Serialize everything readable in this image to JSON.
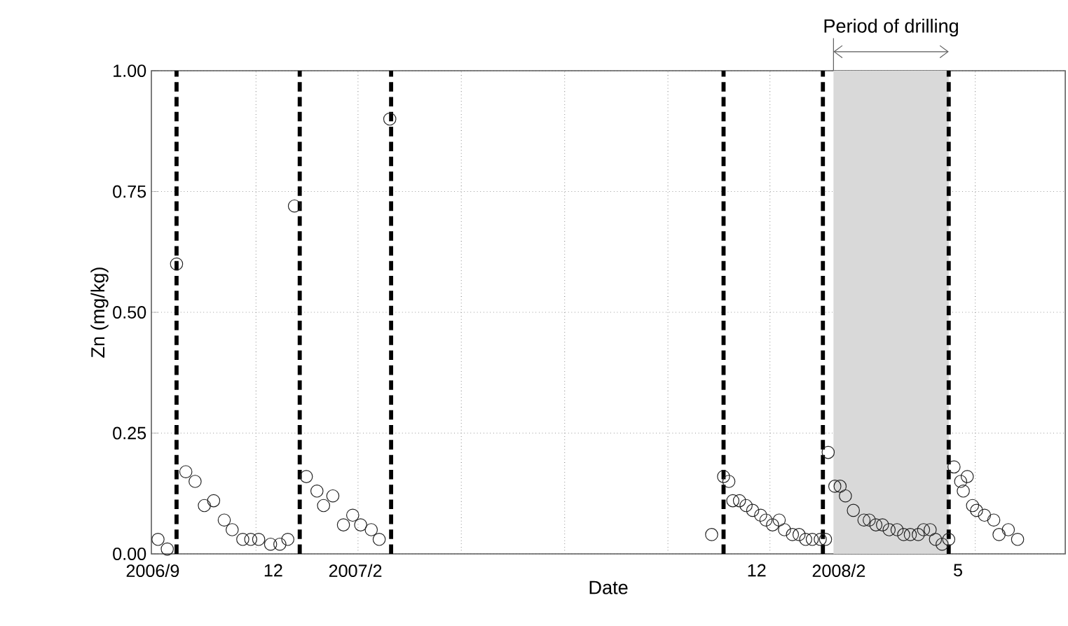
{
  "chart_data": {
    "type": "scatter",
    "xlabel": "Date",
    "ylabel": "Zn (mg/kg)",
    "xlim": [
      "2006-08-31",
      "2008-07-21"
    ],
    "ylim": [
      0,
      1
    ],
    "xticks": [
      {
        "value": "2006-09",
        "label": "2006/9"
      },
      {
        "value": "2006-11-18",
        "label": null
      },
      {
        "value": "2006-12",
        "label": "12"
      },
      {
        "value": "2007-02-03",
        "label": null
      },
      {
        "value": "2007-02",
        "label": "2007/2"
      },
      {
        "value": "2007-04-22",
        "label": null
      },
      {
        "value": "2007-07-09",
        "label": null
      },
      {
        "value": "2007-09-25",
        "label": null
      },
      {
        "value": "2007-12",
        "label": "12"
      },
      {
        "value": "2007-12-11",
        "label": null
      },
      {
        "value": "2008-02",
        "label": "2008/2"
      },
      {
        "value": "2008-02-27",
        "label": null
      },
      {
        "value": "2008-05",
        "label": "5"
      },
      {
        "value": "2008-05-14",
        "label": null
      }
    ],
    "yticks": [
      {
        "value": 0,
        "label": "0.00"
      },
      {
        "value": 0.25,
        "label": "0.25"
      },
      {
        "value": 0.5,
        "label": "0.50"
      },
      {
        "value": 0.75,
        "label": "0.75"
      },
      {
        "value": 1,
        "label": "1.00"
      }
    ],
    "grid": true,
    "marker": "circle",
    "series": [
      {
        "color": "#222222",
        "x": [
          "2006-09-05",
          "2006-09-12",
          "2006-09-19",
          "2006-09-26",
          "2006-10-03",
          "2006-10-10",
          "2006-10-17",
          "2006-10-25",
          "2006-10-31",
          "2006-11-08",
          "2006-11-14",
          "2006-11-20",
          "2006-11-29",
          "2006-12-06",
          "2006-12-12",
          "2006-12-17",
          "2006-12-26",
          "2007-01-03",
          "2007-01-08",
          "2007-01-15",
          "2007-01-23",
          "2007-01-30",
          "2007-02-05",
          "2007-02-13",
          "2007-02-19",
          "2007-02-27",
          "2007-10-28",
          "2007-11-06",
          "2007-11-10",
          "2007-11-13",
          "2007-11-18",
          "2007-11-23",
          "2007-11-28",
          "2007-12-04",
          "2007-12-08",
          "2007-12-13",
          "2007-12-18",
          "2007-12-22",
          "2007-12-28",
          "2008-01-02",
          "2008-01-07",
          "2008-01-12",
          "2008-01-18",
          "2008-01-22",
          "2008-01-24",
          "2008-01-29",
          "2008-02-02",
          "2008-02-06",
          "2008-02-12",
          "2008-02-20",
          "2008-02-24",
          "2008-02-29",
          "2008-03-05",
          "2008-03-10",
          "2008-03-16",
          "2008-03-21",
          "2008-03-26",
          "2008-04-01",
          "2008-04-05",
          "2008-04-10",
          "2008-04-14",
          "2008-04-19",
          "2008-04-24",
          "2008-04-28",
          "2008-05-03",
          "2008-05-05",
          "2008-05-08",
          "2008-05-12",
          "2008-05-15",
          "2008-05-21",
          "2008-05-28",
          "2008-06-01",
          "2008-06-08",
          "2008-06-15"
        ],
        "values": [
          0.03,
          0.01,
          0.6,
          0.17,
          0.15,
          0.1,
          0.11,
          0.07,
          0.05,
          0.03,
          0.03,
          0.03,
          0.02,
          0.02,
          0.03,
          0.72,
          0.16,
          0.13,
          0.1,
          0.12,
          0.06,
          0.08,
          0.06,
          0.05,
          0.03,
          0.9,
          0.04,
          0.16,
          0.15,
          0.11,
          0.11,
          0.1,
          0.09,
          0.08,
          0.07,
          0.06,
          0.07,
          0.05,
          0.04,
          0.04,
          0.03,
          0.03,
          0.03,
          0.03,
          0.21,
          0.14,
          0.14,
          0.12,
          0.09,
          0.07,
          0.07,
          0.06,
          0.06,
          0.05,
          0.05,
          0.04,
          0.04,
          0.04,
          0.05,
          0.05,
          0.03,
          0.02,
          0.03,
          0.18,
          0.15,
          0.13,
          0.16,
          0.1,
          0.09,
          0.08,
          0.07,
          0.04,
          0.05,
          0.03
        ]
      }
    ],
    "ref_lines": [
      {
        "axis": "x",
        "value": "2006-09-19",
        "color": "#000000",
        "line_style": "dashed"
      },
      {
        "axis": "x",
        "value": "2006-12-21",
        "color": "#000000",
        "line_style": "dashed"
      },
      {
        "axis": "x",
        "value": "2007-02-28",
        "color": "#000000",
        "line_style": "dashed"
      },
      {
        "axis": "x",
        "value": "2007-11-06",
        "color": "#000000",
        "line_style": "dashed"
      },
      {
        "axis": "x",
        "value": "2008-01-20",
        "color": "#000000",
        "line_style": "dashed"
      },
      {
        "axis": "x",
        "value": "2008-04-24",
        "color": "#000000",
        "line_style": "dashed"
      }
    ],
    "bands": [
      {
        "axis": "x",
        "from": "2008-01-28",
        "to": "2008-04-24",
        "label": "Period of drilling",
        "color": "#d9d9d9"
      }
    ]
  }
}
